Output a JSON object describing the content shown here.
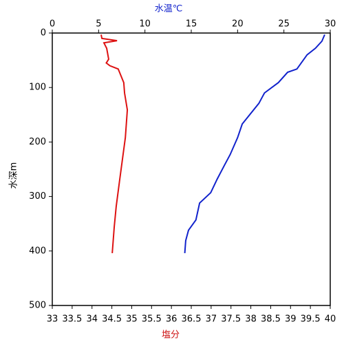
{
  "chart_data": {
    "type": "line",
    "xlabel": "塩分",
    "x2label": "水温℃",
    "ylabel": "水深m",
    "xlim": [
      33,
      40
    ],
    "xticks": [
      33,
      33.5,
      34,
      34.5,
      35,
      35.5,
      36,
      36.5,
      37,
      37.5,
      38,
      38.5,
      39,
      39.5,
      40
    ],
    "x2lim": [
      0,
      30
    ],
    "x2ticks": [
      0,
      5,
      10,
      15,
      20,
      25,
      30
    ],
    "ylim": [
      0,
      500
    ],
    "yticks": [
      0,
      100,
      200,
      300,
      400,
      500
    ],
    "y_inverted": true,
    "series": [
      {
        "color": "#dd1111",
        "axis": "x",
        "x": [
          34.23,
          34.25,
          34.63,
          34.3,
          34.37,
          34.42,
          34.36,
          34.45,
          34.66,
          34.8,
          34.82,
          34.89,
          34.84,
          34.77,
          34.7,
          34.61,
          34.56,
          34.51
        ],
        "values": [
          3,
          10,
          14,
          18,
          28,
          48,
          55,
          60,
          66,
          91,
          110,
          141,
          192,
          230,
          268,
          318,
          356,
          404
        ]
      },
      {
        "color": "#1122cc",
        "axis": "x2",
        "x": [
          29.4,
          29.1,
          28.4,
          27.5,
          26.4,
          25.4,
          24.4,
          22.9,
          22.3,
          20.5,
          20.0,
          19.2,
          18.6,
          17.8,
          17.1,
          15.9,
          15.5,
          14.7,
          14.4,
          14.3
        ],
        "values": [
          3,
          15,
          28,
          40,
          66,
          72,
          91,
          110,
          129,
          167,
          192,
          223,
          242,
          268,
          293,
          312,
          343,
          362,
          381,
          404
        ]
      }
    ]
  }
}
